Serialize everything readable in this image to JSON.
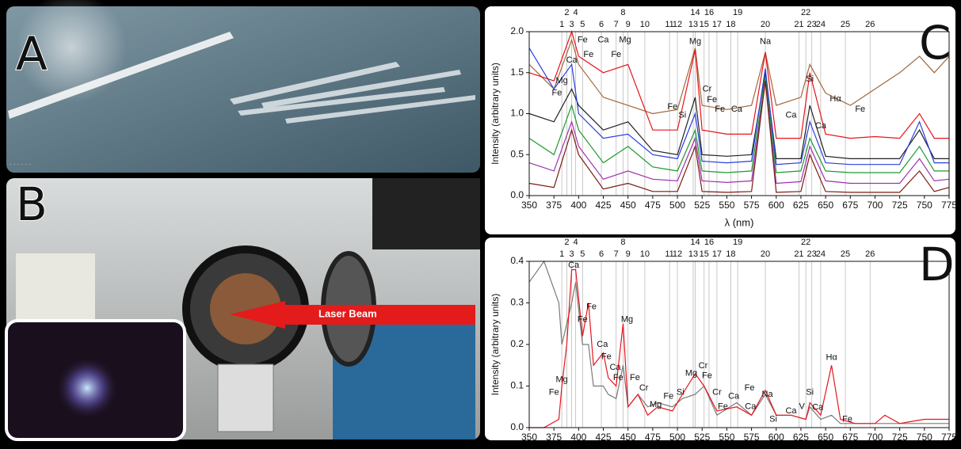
{
  "panels": {
    "A": "A",
    "B": "B",
    "C": "C",
    "D": "D"
  },
  "photo_B": {
    "arrow_label": "Laser Beam"
  },
  "chart_data": [
    {
      "type": "line",
      "ylabel": "Intensity (arbitrary units)",
      "xlabel": "λ (nm)",
      "xlim": [
        350,
        775
      ],
      "xticks": [
        350,
        375,
        400,
        425,
        450,
        475,
        500,
        525,
        550,
        575,
        600,
        625,
        650,
        675,
        700,
        725,
        750,
        775
      ],
      "ylim": [
        0,
        2.0
      ],
      "yticks": [
        {
          "value": 0,
          "label": "0.0"
        },
        {
          "value": 0.5,
          "label": "0.5"
        },
        {
          "value": 1.0,
          "label": "1.0"
        },
        {
          "value": 1.5,
          "label": "1.5"
        },
        {
          "value": 2.0,
          "label": "2.0"
        }
      ],
      "x": [
        350,
        375,
        393,
        400,
        425,
        450,
        475,
        500,
        518,
        525,
        550,
        575,
        589,
        600,
        625,
        634,
        650,
        675,
        700,
        725,
        745,
        760,
        775
      ],
      "series": [
        {
          "color": "#a0683c",
          "values": [
            1.6,
            1.3,
            1.9,
            1.6,
            1.2,
            1.1,
            1.0,
            1.05,
            1.8,
            1.1,
            1.05,
            1.1,
            1.75,
            1.1,
            1.2,
            1.6,
            1.25,
            1.1,
            1.3,
            1.5,
            1.7,
            1.5,
            1.7
          ]
        },
        {
          "color": "#e8141c",
          "values": [
            1.5,
            1.4,
            2.0,
            1.7,
            1.5,
            1.6,
            0.8,
            0.8,
            1.78,
            0.8,
            0.75,
            0.75,
            1.75,
            0.7,
            0.7,
            1.5,
            0.75,
            0.7,
            0.72,
            0.7,
            1.0,
            0.7,
            0.7
          ]
        },
        {
          "color": "#222222",
          "values": [
            1.0,
            0.9,
            1.3,
            1.1,
            0.8,
            0.9,
            0.55,
            0.5,
            1.2,
            0.5,
            0.48,
            0.5,
            1.5,
            0.45,
            0.45,
            1.1,
            0.48,
            0.45,
            0.45,
            0.45,
            0.8,
            0.45,
            0.45
          ]
        },
        {
          "color": "#2a3fe0",
          "values": [
            1.8,
            1.3,
            1.6,
            1.0,
            0.7,
            0.75,
            0.5,
            0.45,
            1.0,
            0.42,
            0.4,
            0.42,
            1.55,
            0.38,
            0.4,
            0.9,
            0.4,
            0.38,
            0.38,
            0.38,
            0.9,
            0.4,
            0.4
          ]
        },
        {
          "color": "#1e9a2e",
          "values": [
            0.7,
            0.5,
            1.1,
            0.8,
            0.4,
            0.6,
            0.35,
            0.3,
            0.8,
            0.3,
            0.28,
            0.3,
            1.45,
            0.28,
            0.3,
            0.7,
            0.3,
            0.28,
            0.28,
            0.28,
            0.6,
            0.3,
            0.3
          ]
        },
        {
          "color": "#a030b0",
          "values": [
            0.4,
            0.3,
            0.9,
            0.6,
            0.2,
            0.3,
            0.2,
            0.18,
            0.7,
            0.18,
            0.16,
            0.18,
            1.4,
            0.15,
            0.17,
            0.6,
            0.18,
            0.15,
            0.15,
            0.15,
            0.45,
            0.18,
            0.2
          ]
        },
        {
          "color": "#7a1a10",
          "values": [
            0.15,
            0.1,
            0.8,
            0.5,
            0.08,
            0.15,
            0.05,
            0.05,
            0.6,
            0.05,
            0.04,
            0.05,
            1.4,
            0.04,
            0.05,
            0.5,
            0.05,
            0.04,
            0.04,
            0.04,
            0.3,
            0.05,
            0.1
          ]
        }
      ],
      "lines": [
        {
          "label": "1",
          "x": 383
        },
        {
          "label": "2",
          "x": 388
        },
        {
          "label": "3",
          "x": 393
        },
        {
          "label": "4",
          "x": 397
        },
        {
          "label": "5",
          "x": 404
        },
        {
          "label": "6",
          "x": 423
        },
        {
          "label": "7",
          "x": 438
        },
        {
          "label": "8",
          "x": 445
        },
        {
          "label": "9",
          "x": 450
        },
        {
          "label": "10",
          "x": 467
        },
        {
          "label": "11",
          "x": 492
        },
        {
          "label": "12",
          "x": 500
        },
        {
          "label": "13",
          "x": 516
        },
        {
          "label": "14",
          "x": 518
        },
        {
          "label": "15",
          "x": 527
        },
        {
          "label": "16",
          "x": 532
        },
        {
          "label": "17",
          "x": 540
        },
        {
          "label": "18",
          "x": 554
        },
        {
          "label": "19",
          "x": 561
        },
        {
          "label": "20",
          "x": 589
        },
        {
          "label": "21",
          "x": 623
        },
        {
          "label": "22",
          "x": 630
        },
        {
          "label": "23",
          "x": 636
        },
        {
          "label": "24",
          "x": 645
        },
        {
          "label": "25",
          "x": 670
        },
        {
          "label": "26",
          "x": 695
        }
      ],
      "annotations": [
        {
          "text": "Fe",
          "x": 378,
          "y": 1.25
        },
        {
          "text": "Mg",
          "x": 383,
          "y": 1.4
        },
        {
          "text": "Ca",
          "x": 393,
          "y": 1.65
        },
        {
          "text": "Fe",
          "x": 404,
          "y": 1.9
        },
        {
          "text": "Ca",
          "x": 425,
          "y": 1.9
        },
        {
          "text": "Fe",
          "x": 410,
          "y": 1.72
        },
        {
          "text": "Mg",
          "x": 447,
          "y": 1.9
        },
        {
          "text": "Fe",
          "x": 438,
          "y": 1.72
        },
        {
          "text": "Fe",
          "x": 495,
          "y": 1.08
        },
        {
          "text": "Si",
          "x": 505,
          "y": 0.98
        },
        {
          "text": "Mg",
          "x": 518,
          "y": 1.88
        },
        {
          "text": "Cr",
          "x": 530,
          "y": 1.3
        },
        {
          "text": "Fe",
          "x": 535,
          "y": 1.17
        },
        {
          "text": "Fe",
          "x": 543,
          "y": 1.05
        },
        {
          "text": "Ca",
          "x": 560,
          "y": 1.05
        },
        {
          "text": "Na",
          "x": 589,
          "y": 1.88
        },
        {
          "text": "Ca",
          "x": 615,
          "y": 0.98
        },
        {
          "text": "Si",
          "x": 634,
          "y": 1.42
        },
        {
          "text": "Ca",
          "x": 645,
          "y": 0.85
        },
        {
          "text": "Hα",
          "x": 660,
          "y": 1.18
        },
        {
          "text": "Fe",
          "x": 685,
          "y": 1.05
        }
      ]
    },
    {
      "type": "line",
      "ylabel": "Intensity (arbitrary units)",
      "xlim": [
        350,
        775
      ],
      "xticks": [
        350,
        375,
        400,
        425,
        450,
        475,
        500,
        525,
        550,
        575,
        600,
        625,
        650,
        675,
        700,
        725,
        750,
        775
      ],
      "ylim": [
        0,
        0.4
      ],
      "yticks": [
        {
          "value": 0,
          "label": "0.0"
        },
        0.1,
        0.2,
        0.3,
        0.4
      ],
      "x": [
        350,
        365,
        380,
        383,
        388,
        393,
        397,
        404,
        410,
        415,
        425,
        430,
        438,
        445,
        450,
        460,
        470,
        480,
        495,
        505,
        518,
        527,
        540,
        560,
        575,
        589,
        600,
        615,
        630,
        634,
        645,
        656,
        665,
        680,
        700,
        710,
        725,
        750,
        775
      ],
      "series": [
        {
          "color": "#7a7a7a",
          "values": [
            0.35,
            0.4,
            0.3,
            0.2,
            0.25,
            0.3,
            0.35,
            0.2,
            0.2,
            0.1,
            0.1,
            0.08,
            0.07,
            0.15,
            0.05,
            0.08,
            0.05,
            0.06,
            0.05,
            0.07,
            0.08,
            0.1,
            0.03,
            0.06,
            0.03,
            0.08,
            0.03,
            0.03,
            0.02,
            0.05,
            0.02,
            0.03,
            0.01,
            0.01,
            0.01,
            0.01,
            0.01,
            0.01,
            0.01
          ]
        },
        {
          "color": "#e8141c",
          "values": [
            0,
            0,
            0.02,
            0.1,
            0.2,
            0.38,
            0.38,
            0.22,
            0.3,
            0.15,
            0.18,
            0.12,
            0.1,
            0.25,
            0.05,
            0.08,
            0.03,
            0.05,
            0.04,
            0.08,
            0.13,
            0.1,
            0.04,
            0.05,
            0.03,
            0.09,
            0.03,
            0.03,
            0.02,
            0.06,
            0.03,
            0.15,
            0.02,
            0.01,
            0.01,
            0.03,
            0.01,
            0.02,
            0.02
          ]
        }
      ],
      "lines": [
        {
          "label": "1",
          "x": 383
        },
        {
          "label": "2",
          "x": 388
        },
        {
          "label": "3",
          "x": 393
        },
        {
          "label": "4",
          "x": 397
        },
        {
          "label": "5",
          "x": 404
        },
        {
          "label": "6",
          "x": 423
        },
        {
          "label": "7",
          "x": 438
        },
        {
          "label": "8",
          "x": 445
        },
        {
          "label": "9",
          "x": 450
        },
        {
          "label": "10",
          "x": 467
        },
        {
          "label": "11",
          "x": 492
        },
        {
          "label": "12",
          "x": 500
        },
        {
          "label": "13",
          "x": 516
        },
        {
          "label": "14",
          "x": 518
        },
        {
          "label": "15",
          "x": 527
        },
        {
          "label": "16",
          "x": 532
        },
        {
          "label": "17",
          "x": 540
        },
        {
          "label": "18",
          "x": 554
        },
        {
          "label": "19",
          "x": 561
        },
        {
          "label": "20",
          "x": 589
        },
        {
          "label": "21",
          "x": 623
        },
        {
          "label": "22",
          "x": 630
        },
        {
          "label": "23",
          "x": 636
        },
        {
          "label": "24",
          "x": 645
        },
        {
          "label": "25",
          "x": 670
        },
        {
          "label": "26",
          "x": 695
        }
      ],
      "annotations": [
        {
          "text": "Fe",
          "x": 375,
          "y": 0.085
        },
        {
          "text": "Mg",
          "x": 383,
          "y": 0.115
        },
        {
          "text": "Ca",
          "x": 395,
          "y": 0.39
        },
        {
          "text": "Fe",
          "x": 404,
          "y": 0.26
        },
        {
          "text": "Fe",
          "x": 413,
          "y": 0.29
        },
        {
          "text": "Ca",
          "x": 424,
          "y": 0.2
        },
        {
          "text": "Fe",
          "x": 428,
          "y": 0.17
        },
        {
          "text": "Ca",
          "x": 437,
          "y": 0.145
        },
        {
          "text": "Fe",
          "x": 440,
          "y": 0.12
        },
        {
          "text": "Mg",
          "x": 449,
          "y": 0.26
        },
        {
          "text": "Fe",
          "x": 457,
          "y": 0.12
        },
        {
          "text": "Cr",
          "x": 466,
          "y": 0.095
        },
        {
          "text": "Mg",
          "x": 478,
          "y": 0.055
        },
        {
          "text": "Fe",
          "x": 491,
          "y": 0.075
        },
        {
          "text": "Si",
          "x": 503,
          "y": 0.085
        },
        {
          "text": "Mg",
          "x": 514,
          "y": 0.13
        },
        {
          "text": "Cr",
          "x": 526,
          "y": 0.148
        },
        {
          "text": "Fe",
          "x": 530,
          "y": 0.125
        },
        {
          "text": "Cr",
          "x": 540,
          "y": 0.085
        },
        {
          "text": "Fe",
          "x": 546,
          "y": 0.05
        },
        {
          "text": "Ca",
          "x": 557,
          "y": 0.075
        },
        {
          "text": "Fe",
          "x": 573,
          "y": 0.095
        },
        {
          "text": "Ca",
          "x": 574,
          "y": 0.05
        },
        {
          "text": "Na",
          "x": 591,
          "y": 0.08
        },
        {
          "text": "Si",
          "x": 597,
          "y": 0.02
        },
        {
          "text": "Ca",
          "x": 615,
          "y": 0.04
        },
        {
          "text": "V",
          "x": 626,
          "y": 0.05
        },
        {
          "text": "Si",
          "x": 634,
          "y": 0.085
        },
        {
          "text": "Ca",
          "x": 642,
          "y": 0.048
        },
        {
          "text": "Hα",
          "x": 656,
          "y": 0.168
        },
        {
          "text": "Fe",
          "x": 672,
          "y": 0.02
        }
      ]
    }
  ]
}
